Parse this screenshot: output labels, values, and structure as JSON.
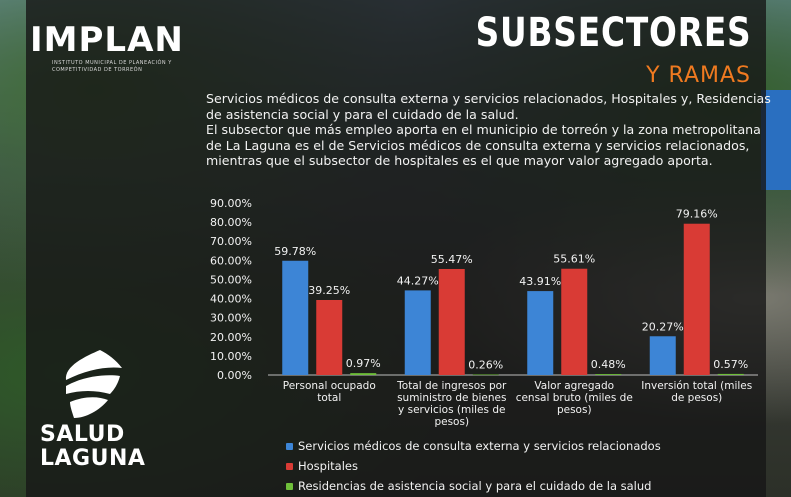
{
  "brand": {
    "logo_text": "IMPLAN",
    "logo_subtext": "INSTITUTO MUNICIPAL DE PLANEACIÓN Y COMPETITIVIDAD DE TORREÓN",
    "partner_line1": "SALUD",
    "partner_line2": "LAGUNA"
  },
  "header": {
    "title_line1": "SUBSECTORES",
    "title_line2": "Y RAMAS"
  },
  "description": {
    "line1": "Servicios médicos de consulta externa y servicios relacionados, Hospitales y, Residencias de asistencia social y para el cuidado de la salud.",
    "line2": "El subsector que más empleo aporta en el municipio de torreón y la zona metropolitana de La Laguna es el de Servicios médicos de consulta externa y servicios relacionados, mientras que el subsector de hospitales es el que mayor valor agregado aporta."
  },
  "colors": {
    "accent": "#f07a20",
    "series_blue": "#3d85d6",
    "series_red": "#d93b35",
    "series_green": "#6fbf3a"
  },
  "chart_data": {
    "type": "bar",
    "categories": [
      [
        "Personal ocupado",
        "total"
      ],
      [
        "Total de ingresos por",
        "suministro de bienes",
        "y servicios (miles de",
        "pesos)"
      ],
      [
        "Valor agregado",
        "censal bruto (miles de",
        "pesos)"
      ],
      [
        "Inversión total (miles",
        "de pesos)"
      ]
    ],
    "series": [
      {
        "name": "Servicios médicos de consulta externa y servicios relacionados",
        "values": [
          59.78,
          44.27,
          43.91,
          20.27
        ],
        "labels": [
          "59.78%",
          "44.27%",
          "43.91%",
          "20.27%"
        ]
      },
      {
        "name": "Hospitales",
        "values": [
          39.25,
          55.47,
          55.61,
          79.16
        ],
        "labels": [
          "39.25%",
          "55.47%",
          "55.61%",
          "79.16%"
        ]
      },
      {
        "name": "Residencias de asistencia social y para el cuidado de la salud",
        "values": [
          0.97,
          0.26,
          0.48,
          0.57
        ],
        "labels": [
          "0.97%",
          "0.26%",
          "0.48%",
          "0.57%"
        ]
      }
    ],
    "yticks": [
      "0.00%",
      "10.00%",
      "20.00%",
      "30.00%",
      "40.00%",
      "50.00%",
      "60.00%",
      "70.00%",
      "80.00%",
      "90.00%"
    ],
    "ylim": [
      0,
      90
    ],
    "legend_position": "bottom"
  }
}
